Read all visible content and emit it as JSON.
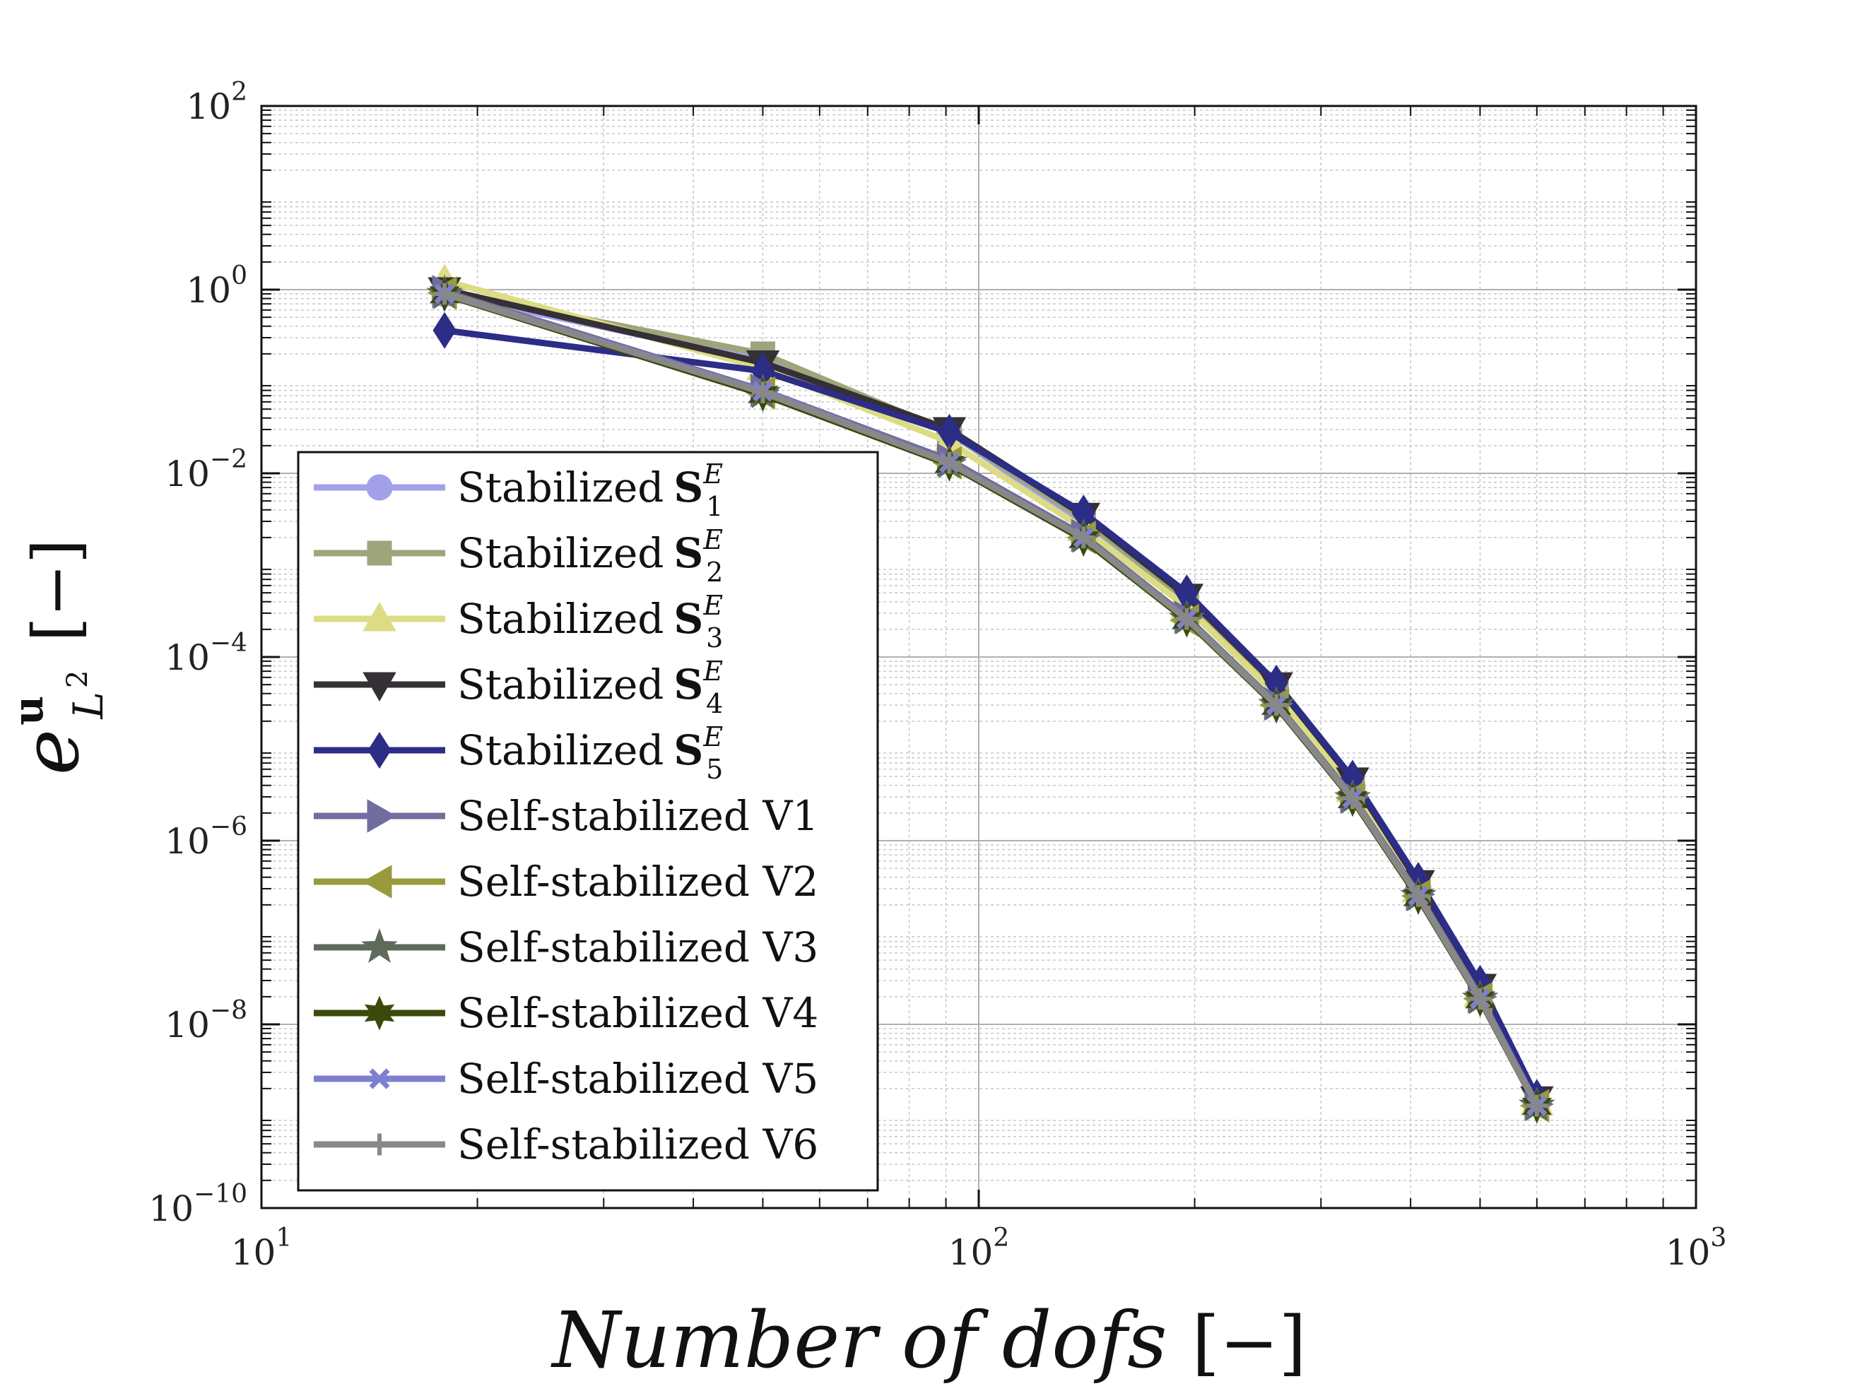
{
  "chart_data": {
    "type": "line",
    "xscale": "log",
    "yscale": "log",
    "xlim": [
      10,
      1000
    ],
    "ylim": [
      1e-10,
      100
    ],
    "xlabel": {
      "main": "Number of dofs",
      "unit": "[−]"
    },
    "ylabel": {
      "base": "e",
      "sup": "u",
      "sub": "L",
      "sub_sup": "2",
      "unit": "[−]"
    },
    "x_ticks": [
      {
        "value": 10,
        "base": "10",
        "exp": "1"
      },
      {
        "value": 100,
        "base": "10",
        "exp": "2"
      },
      {
        "value": 1000,
        "base": "10",
        "exp": "3"
      }
    ],
    "y_ticks": [
      {
        "value": 100,
        "base": "10",
        "exp": "2"
      },
      {
        "value": 1,
        "base": "10",
        "exp": "0"
      },
      {
        "value": 0.01,
        "base": "10",
        "exp": "−2"
      },
      {
        "value": 0.0001,
        "base": "10",
        "exp": "−4"
      },
      {
        "value": 1e-06,
        "base": "10",
        "exp": "−6"
      },
      {
        "value": 1e-08,
        "base": "10",
        "exp": "−8"
      },
      {
        "value": 1e-10,
        "base": "10",
        "exp": "−10"
      }
    ],
    "grid": true,
    "legend_position": "lower-left",
    "x": [
      18,
      50,
      91,
      140,
      195,
      260,
      332,
      410,
      500,
      600
    ],
    "series": [
      {
        "name": "Stabilized S1E",
        "label_prefix": "Stabilized",
        "label_bold": "S",
        "label_sub": "1",
        "label_sup": "E",
        "color": "#a3a0ea",
        "marker": "circle",
        "values": [
          0.9,
          0.17,
          0.028,
          0.0028,
          0.00038,
          4.2e-05,
          3.8e-06,
          3e-07,
          2.2e-08,
          1.45e-09
        ]
      },
      {
        "name": "Stabilized S2E",
        "label_prefix": "Stabilized",
        "label_bold": "S",
        "label_sub": "2",
        "label_sup": "E",
        "color": "#9ea57b",
        "marker": "square",
        "values": [
          0.95,
          0.2,
          0.028,
          0.0032,
          0.00042,
          4.4e-05,
          4e-06,
          3.1e-07,
          2.3e-08,
          1.5e-09
        ]
      },
      {
        "name": "Stabilized S3E",
        "label_prefix": "Stabilized",
        "label_bold": "S",
        "label_sub": "3",
        "label_sup": "E",
        "color": "#dcdc84",
        "marker": "triangle-up",
        "values": [
          1.25,
          0.14,
          0.022,
          0.0025,
          0.00035,
          3.9e-05,
          3.6e-06,
          2.9e-07,
          2.1e-08,
          1.4e-09
        ]
      },
      {
        "name": "Stabilized S4E",
        "label_prefix": "Stabilized",
        "label_bold": "S",
        "label_sub": "4",
        "label_sup": "E",
        "color": "#343036",
        "marker": "triangle-down",
        "values": [
          1.0,
          0.16,
          0.03,
          0.0035,
          0.00046,
          5e-05,
          4.6e-06,
          3.5e-07,
          2.6e-08,
          1.55e-09
        ]
      },
      {
        "name": "Stabilized S5E",
        "label_prefix": "Stabilized",
        "label_bold": "S",
        "label_sub": "5",
        "label_sup": "E",
        "color": "#2b2d86",
        "marker": "diamond",
        "values": [
          0.36,
          0.13,
          0.028,
          0.0037,
          0.0005,
          5.2e-05,
          4.8e-06,
          3.7e-07,
          2.8e-08,
          1.6e-09
        ]
      },
      {
        "name": "Self-stabilized V1",
        "label_prefix": "Self-stabilized V1",
        "color": "#716d9e",
        "marker": "triangle-right",
        "values": [
          0.95,
          0.08,
          0.014,
          0.0021,
          0.00027,
          3.1e-05,
          3e-06,
          2.6e-07,
          2e-08,
          1.35e-09
        ]
      },
      {
        "name": "Self-stabilized V2",
        "label_prefix": "Self-stabilized V2",
        "color": "#999a3c",
        "marker": "triangle-left",
        "values": [
          0.92,
          0.075,
          0.013,
          0.002,
          0.00025,
          3e-05,
          2.9e-06,
          2.5e-07,
          1.9e-08,
          1.3e-09
        ]
      },
      {
        "name": "Self-stabilized V3",
        "label_prefix": "Self-stabilized V3",
        "color": "#5e6a5a",
        "marker": "star5",
        "values": [
          0.9,
          0.075,
          0.013,
          0.002,
          0.00026,
          3e-05,
          2.9e-06,
          2.5e-07,
          1.9e-08,
          1.3e-09
        ]
      },
      {
        "name": "Self-stabilized V4",
        "label_prefix": "Self-stabilized V4",
        "color": "#3a4a0a",
        "marker": "star6",
        "values": [
          0.88,
          0.072,
          0.0125,
          0.0019,
          0.00025,
          2.9e-05,
          2.8e-06,
          2.4e-07,
          1.85e-08,
          1.28e-09
        ]
      },
      {
        "name": "Self-stabilized V5",
        "label_prefix": "Self-stabilized V5",
        "color": "#7f7fcf",
        "marker": "x",
        "values": [
          0.9,
          0.078,
          0.013,
          0.002,
          0.00026,
          3e-05,
          2.9e-06,
          2.5e-07,
          1.9e-08,
          1.3e-09
        ]
      },
      {
        "name": "Self-stabilized V6",
        "label_prefix": "Self-stabilized V6",
        "color": "#888888",
        "marker": "plus",
        "values": [
          0.9,
          0.076,
          0.013,
          0.002,
          0.00026,
          3e-05,
          2.9e-06,
          2.5e-07,
          1.9e-08,
          1.3e-09
        ]
      }
    ]
  }
}
